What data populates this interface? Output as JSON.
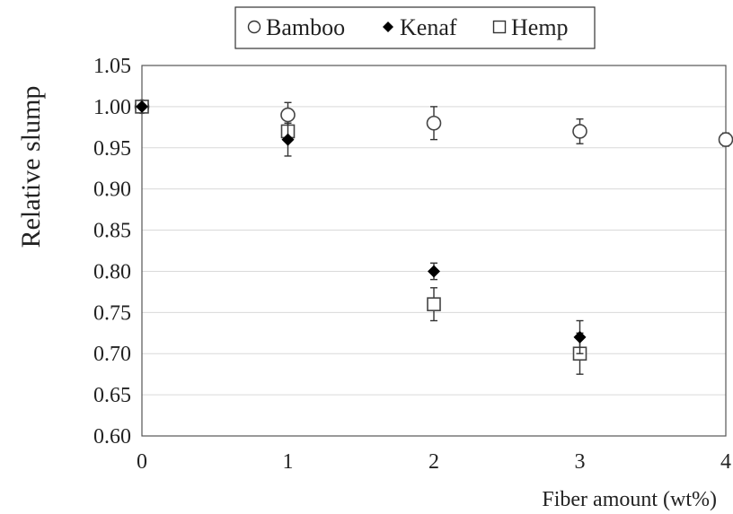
{
  "chart_data": {
    "type": "scatter",
    "title": "",
    "xlabel": "Fiber amount (wt%)",
    "ylabel": "Relative slump",
    "xlim": [
      0,
      4
    ],
    "ylim": [
      0.6,
      1.05
    ],
    "xticks": [
      "0",
      "1",
      "2",
      "3",
      "4"
    ],
    "yticks": [
      "0.60",
      "0.65",
      "0.70",
      "0.75",
      "0.80",
      "0.85",
      "0.90",
      "0.95",
      "1.00",
      "1.05"
    ],
    "grid": "horizontal",
    "legend_position": "top",
    "series": [
      {
        "name": "Bamboo",
        "marker": "open-circle",
        "color": "#444444",
        "points": [
          {
            "x": 0,
            "y": 1.0,
            "err": 0
          },
          {
            "x": 1,
            "y": 0.99,
            "err": 0.015
          },
          {
            "x": 2,
            "y": 0.98,
            "err": 0.02
          },
          {
            "x": 3,
            "y": 0.97,
            "err": 0.015
          },
          {
            "x": 4,
            "y": 0.96,
            "err": 0.008
          }
        ]
      },
      {
        "name": "Kenaf",
        "marker": "filled-diamond",
        "color": "#000000",
        "points": [
          {
            "x": 0,
            "y": 1.0,
            "err": 0
          },
          {
            "x": 1,
            "y": 0.96,
            "err": 0.02
          },
          {
            "x": 2,
            "y": 0.8,
            "err": 0.01
          },
          {
            "x": 3,
            "y": 0.72,
            "err": 0.02
          }
        ]
      },
      {
        "name": "Hemp",
        "marker": "open-square",
        "color": "#444444",
        "points": [
          {
            "x": 0,
            "y": 1.0,
            "err": 0
          },
          {
            "x": 1,
            "y": 0.97,
            "err": 0.01
          },
          {
            "x": 2,
            "y": 0.76,
            "err": 0.02
          },
          {
            "x": 3,
            "y": 0.7,
            "err": 0.025
          }
        ]
      }
    ]
  }
}
